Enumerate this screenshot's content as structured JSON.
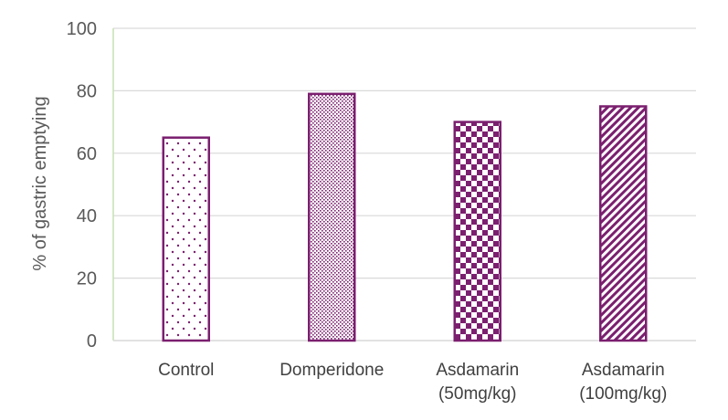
{
  "chart_data": {
    "type": "bar",
    "title": "",
    "xlabel": "",
    "ylabel": "% of gastric emptying",
    "ylim": [
      0,
      100
    ],
    "yticks": [
      0,
      20,
      40,
      60,
      80,
      100
    ],
    "grid": true,
    "categories": [
      [
        "Control"
      ],
      [
        "Domperidone"
      ],
      [
        "Asdamarin",
        "(50mg/kg)"
      ],
      [
        "Asdamarin",
        "(100mg/kg)"
      ]
    ],
    "values": [
      65,
      79,
      70,
      75
    ],
    "patterns": [
      "dots",
      "fine-dots",
      "checkerboard",
      "diagonal-stripes"
    ],
    "colors": {
      "bar_stroke": "#7b1f6f",
      "bar_fill": "#7b1f6f",
      "grid": "#d9d9d9",
      "y_axis": "#c5e0b4",
      "x_axis": "#d9d9d9"
    }
  }
}
